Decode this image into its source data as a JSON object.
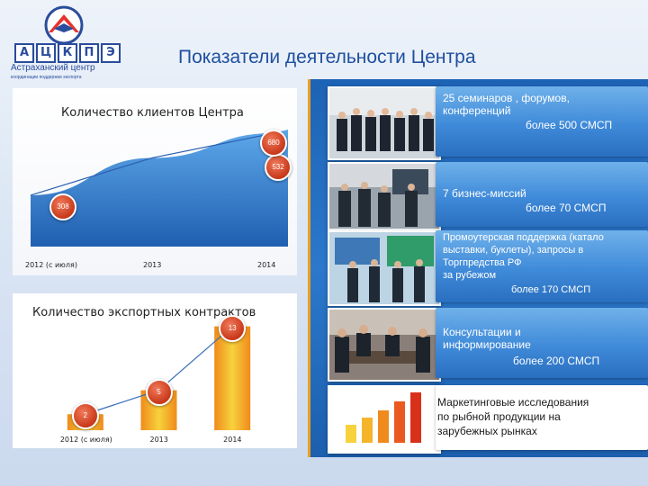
{
  "slide": {
    "title": "Показатели деятельности Центра"
  },
  "logo": {
    "letters": [
      "А",
      "Ц",
      "К",
      "П",
      "Э"
    ],
    "name": "Астраханский центр",
    "subtitle": "координации поддержки экспорта"
  },
  "charts_text": {
    "clients_title": "Количество клиентов Центра",
    "contracts_title": "Количество экспортных контрактов"
  },
  "chart_data": [
    {
      "type": "area",
      "title": "Количество клиентов Центра",
      "categories": [
        "2012 (с июля)",
        "2013",
        "2014"
      ],
      "values": [
        308,
        532,
        680
      ],
      "ylim": [
        0,
        800
      ],
      "grid": false
    },
    {
      "type": "bar",
      "title": "Количество экспортных контрактов",
      "categories": [
        "2012 (с июля)",
        "2013",
        "2014"
      ],
      "values": [
        2,
        5,
        13
      ],
      "ylim": [
        0,
        16
      ],
      "grid": false
    }
  ],
  "items": [
    {
      "lines": [
        "25  семинаров , форумов,",
        "конференций",
        "более 500 СМСП"
      ]
    },
    {
      "lines": [
        "7 бизнес-миссий",
        "более 70 СМСП"
      ]
    },
    {
      "lines": [
        "Промоутерская поддержка (катало",
        "выставки, буклеты), запросы в",
        "Торгпредства РФ",
        "за рубежом",
        "более 170 СМСП"
      ]
    },
    {
      "lines": [
        "Консультации и",
        "информирование",
        "более 200 СМСП"
      ]
    },
    {
      "lines": [
        "Маркетинговые исследования",
        "по рыбной продукции на",
        "зарубежных рынках"
      ]
    }
  ],
  "colors": {
    "title": "#1f4fa0",
    "accent_orange": "#f0a020",
    "bar_gradient": [
      "#f7d23c",
      "#f08a1c"
    ],
    "bubble": "#c8381a",
    "card_blue": "#3f8ad9"
  }
}
